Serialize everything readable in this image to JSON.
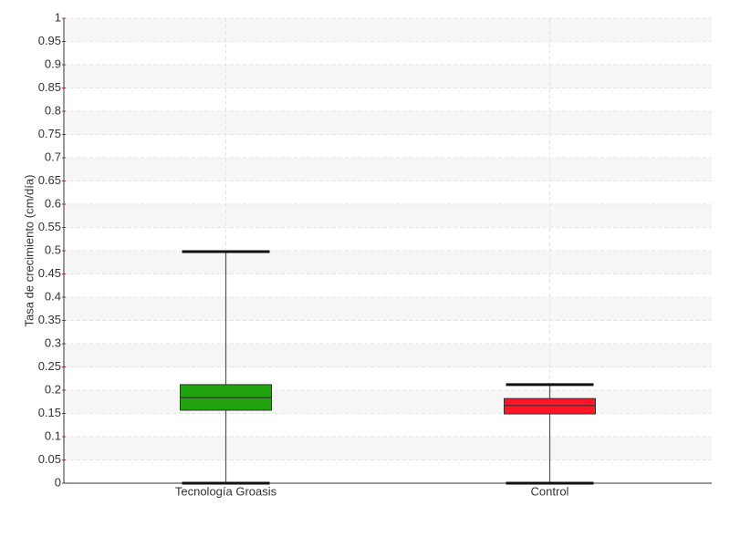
{
  "chart_data": {
    "type": "box",
    "y_label": "Tasa de crecimiento (cm/día)",
    "categories": [
      "Tecnología Groasis",
      "Control"
    ],
    "colors": [
      "#21a30f",
      "#ff1428"
    ],
    "boxes": [
      {
        "min": 0,
        "q1": 0.157,
        "median": 0.184,
        "q3": 0.212,
        "max": 0.498
      },
      {
        "min": 0,
        "q1": 0.149,
        "median": 0.167,
        "q3": 0.182,
        "max": 0.212
      }
    ],
    "ylim": [
      0,
      1
    ],
    "yticks": [
      0,
      0.05,
      0.1,
      0.15,
      0.2,
      0.25,
      0.3,
      0.35,
      0.4,
      0.45,
      0.5,
      0.55,
      0.6,
      0.65,
      0.7,
      0.75,
      0.8,
      0.85,
      0.9,
      0.95,
      1
    ],
    "grid": true
  }
}
